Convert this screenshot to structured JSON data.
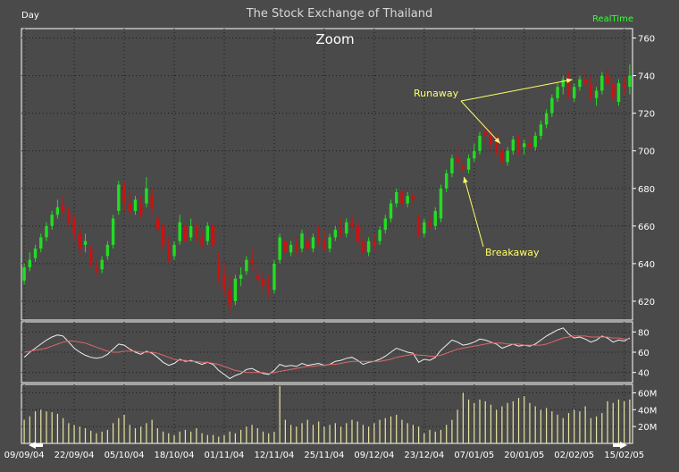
{
  "header": {
    "period_label": "Day",
    "title": "The Stock Exchange of Thailand",
    "realtime_label": "RealTime",
    "zoom_label": "Zoom"
  },
  "colors": {
    "background": "#4a4a4a",
    "grid": "#1a1a1a",
    "up": "#22dd22",
    "down": "#cc1111",
    "volume": "#e8e4a0",
    "rsi_line": "#eeeeee",
    "ma_line": "#dd6666",
    "annotation": "#ffff66",
    "panel_border": "#ffffff"
  },
  "chart_data": [
    {
      "type": "candlestick",
      "title": "The Stock Exchange of Thailand",
      "period": "Day",
      "ylim": [
        610,
        765
      ],
      "y_ticks": [
        620,
        640,
        660,
        680,
        700,
        720,
        740,
        760
      ],
      "x_tick_labels": [
        "09/09/04",
        "22/09/04",
        "05/10/04",
        "18/10/04",
        "01/11/04",
        "12/11/04",
        "25/11/04",
        "09/12/04",
        "23/12/04",
        "07/01/05",
        "20/01/05",
        "02/02/05",
        "15/02/05"
      ],
      "x_tick_index": [
        0,
        9,
        18,
        27,
        36,
        45,
        54,
        63,
        72,
        81,
        90,
        99,
        108
      ],
      "annotations": [
        {
          "text": "Runaway",
          "target_index": [
            86,
            99
          ]
        },
        {
          "text": "Breakaway",
          "target_index": [
            79
          ]
        }
      ],
      "ohlc": [
        [
          631,
          640,
          629,
          638
        ],
        [
          638,
          646,
          636,
          642
        ],
        [
          643,
          650,
          641,
          648
        ],
        [
          648,
          656,
          646,
          654
        ],
        [
          654,
          662,
          652,
          660
        ],
        [
          660,
          668,
          658,
          666
        ],
        [
          666,
          674,
          664,
          670
        ],
        [
          671,
          676,
          666,
          668
        ],
        [
          668,
          670,
          660,
          662
        ],
        [
          664,
          666,
          652,
          656
        ],
        [
          656,
          660,
          644,
          648
        ],
        [
          650,
          656,
          646,
          652
        ],
        [
          648,
          650,
          638,
          640
        ],
        [
          638,
          642,
          634,
          636
        ],
        [
          637,
          644,
          635,
          642
        ],
        [
          644,
          652,
          642,
          650
        ],
        [
          650,
          666,
          648,
          664
        ],
        [
          668,
          684,
          666,
          682
        ],
        [
          682,
          684,
          668,
          672
        ],
        [
          672,
          678,
          666,
          668
        ],
        [
          668,
          676,
          666,
          674
        ],
        [
          672,
          676,
          664,
          666
        ],
        [
          672,
          686,
          670,
          680
        ],
        [
          676,
          680,
          666,
          670
        ],
        [
          664,
          666,
          656,
          658
        ],
        [
          660,
          662,
          646,
          650
        ],
        [
          650,
          654,
          640,
          642
        ],
        [
          644,
          652,
          642,
          650
        ],
        [
          652,
          666,
          650,
          662
        ],
        [
          660,
          662,
          650,
          652
        ],
        [
          654,
          664,
          652,
          660
        ],
        [
          660,
          662,
          652,
          654
        ],
        [
          654,
          658,
          648,
          650
        ],
        [
          652,
          662,
          650,
          660
        ],
        [
          660,
          662,
          648,
          650
        ],
        [
          640,
          646,
          630,
          634
        ],
        [
          634,
          640,
          622,
          626
        ],
        [
          626,
          634,
          614,
          618
        ],
        [
          620,
          634,
          618,
          632
        ],
        [
          632,
          638,
          628,
          634
        ],
        [
          636,
          644,
          634,
          642
        ],
        [
          642,
          648,
          636,
          640
        ],
        [
          634,
          640,
          628,
          632
        ],
        [
          632,
          636,
          624,
          628
        ],
        [
          628,
          634,
          622,
          626
        ],
        [
          626,
          642,
          624,
          640
        ],
        [
          642,
          656,
          640,
          654
        ],
        [
          652,
          654,
          642,
          646
        ],
        [
          646,
          652,
          644,
          650
        ],
        [
          650,
          654,
          644,
          648
        ],
        [
          648,
          658,
          646,
          656
        ],
        [
          652,
          656,
          646,
          648
        ],
        [
          648,
          656,
          646,
          654
        ],
        [
          654,
          660,
          650,
          652
        ],
        [
          652,
          658,
          646,
          648
        ],
        [
          648,
          656,
          646,
          654
        ],
        [
          654,
          660,
          652,
          658
        ],
        [
          658,
          664,
          654,
          656
        ],
        [
          656,
          664,
          654,
          662
        ],
        [
          662,
          666,
          658,
          660
        ],
        [
          660,
          664,
          650,
          652
        ],
        [
          652,
          660,
          642,
          646
        ],
        [
          646,
          654,
          644,
          652
        ],
        [
          652,
          656,
          646,
          650
        ],
        [
          652,
          660,
          650,
          658
        ],
        [
          658,
          666,
          656,
          664
        ],
        [
          664,
          674,
          662,
          672
        ],
        [
          672,
          680,
          670,
          678
        ],
        [
          678,
          680,
          670,
          672
        ],
        [
          672,
          678,
          670,
          676
        ],
        [
          676,
          678,
          670,
          674
        ],
        [
          664,
          666,
          654,
          656
        ],
        [
          656,
          664,
          654,
          662
        ],
        [
          662,
          666,
          658,
          660
        ],
        [
          660,
          670,
          658,
          668
        ],
        [
          664,
          682,
          662,
          680
        ],
        [
          680,
          690,
          678,
          688
        ],
        [
          688,
          698,
          686,
          696
        ],
        [
          696,
          702,
          690,
          694
        ],
        [
          692,
          696,
          688,
          690
        ],
        [
          690,
          698,
          688,
          696
        ],
        [
          696,
          704,
          694,
          700
        ],
        [
          700,
          710,
          698,
          708
        ],
        [
          710,
          714,
          704,
          708
        ],
        [
          708,
          712,
          700,
          704
        ],
        [
          704,
          708,
          698,
          700
        ],
        [
          700,
          702,
          692,
          694
        ],
        [
          694,
          702,
          692,
          700
        ],
        [
          700,
          708,
          698,
          706
        ],
        [
          706,
          708,
          698,
          702
        ],
        [
          702,
          706,
          698,
          704
        ],
        [
          704,
          708,
          700,
          702
        ],
        [
          702,
          710,
          700,
          708
        ],
        [
          708,
          716,
          706,
          714
        ],
        [
          714,
          722,
          712,
          720
        ],
        [
          720,
          730,
          718,
          728
        ],
        [
          728,
          736,
          726,
          734
        ],
        [
          734,
          740,
          730,
          738
        ],
        [
          738,
          742,
          728,
          730
        ],
        [
          728,
          736,
          726,
          734
        ],
        [
          734,
          740,
          732,
          738
        ],
        [
          738,
          744,
          734,
          736
        ],
        [
          736,
          740,
          726,
          728
        ],
        [
          728,
          734,
          724,
          732
        ],
        [
          732,
          742,
          730,
          740
        ],
        [
          740,
          744,
          734,
          736
        ],
        [
          736,
          740,
          726,
          728
        ],
        [
          726,
          738,
          724,
          736
        ],
        [
          736,
          740,
          730,
          734
        ],
        [
          734,
          746,
          730,
          740
        ]
      ]
    },
    {
      "type": "line",
      "ylim": [
        30,
        90
      ],
      "y_ticks": [
        40,
        60,
        80
      ],
      "series": [
        {
          "key": "rsi",
          "values": [
            55,
            60,
            64,
            68,
            72,
            75,
            77,
            76,
            70,
            64,
            60,
            57,
            55,
            54,
            55,
            58,
            63,
            68,
            67,
            63,
            60,
            58,
            61,
            59,
            55,
            50,
            47,
            49,
            53,
            51,
            52,
            50,
            48,
            50,
            48,
            42,
            38,
            34,
            37,
            39,
            43,
            44,
            41,
            39,
            38,
            42,
            48,
            46,
            47,
            46,
            49,
            47,
            48,
            49,
            47,
            48,
            51,
            52,
            54,
            55,
            52,
            48,
            50,
            51,
            53,
            56,
            60,
            64,
            62,
            60,
            59,
            50,
            53,
            52,
            55,
            62,
            67,
            72,
            70,
            67,
            68,
            70,
            73,
            72,
            70,
            68,
            64,
            66,
            68,
            66,
            67,
            66,
            68,
            72,
            76,
            79,
            82,
            84,
            78,
            74,
            75,
            73,
            70,
            72,
            76,
            74,
            70,
            72,
            71,
            74
          ]
        },
        {
          "key": "ma",
          "values": [
            60,
            61,
            62,
            63,
            64,
            66,
            68,
            70,
            71,
            71,
            70,
            69,
            67,
            65,
            63,
            61,
            60,
            60,
            61,
            61,
            61,
            60,
            60,
            60,
            59,
            57,
            55,
            53,
            52,
            52,
            51,
            51,
            50,
            50,
            49,
            48,
            46,
            44,
            42,
            41,
            40,
            40,
            40,
            40,
            39,
            40,
            41,
            42,
            43,
            44,
            45,
            46,
            46,
            47,
            47,
            48,
            48,
            49,
            50,
            51,
            51,
            51,
            51,
            51,
            51,
            52,
            53,
            55,
            56,
            57,
            58,
            57,
            57,
            56,
            56,
            57,
            59,
            61,
            63,
            64,
            65,
            66,
            67,
            68,
            69,
            69,
            69,
            68,
            68,
            68,
            67,
            67,
            67,
            67,
            68,
            70,
            72,
            74,
            75,
            76,
            76,
            76,
            75,
            75,
            75,
            75,
            74,
            74,
            73,
            73
          ]
        }
      ]
    },
    {
      "type": "bar",
      "ylim": [
        0,
        70
      ],
      "y_ticks": [
        20,
        40,
        60
      ],
      "y_tick_labels": [
        "20M",
        "40M",
        "60M"
      ],
      "values": [
        28,
        32,
        38,
        40,
        38,
        37,
        35,
        30,
        24,
        22,
        20,
        18,
        15,
        12,
        14,
        16,
        24,
        30,
        34,
        22,
        18,
        20,
        24,
        28,
        18,
        14,
        12,
        10,
        14,
        16,
        14,
        18,
        12,
        10,
        10,
        8,
        10,
        14,
        12,
        16,
        20,
        22,
        18,
        14,
        12,
        14,
        68,
        28,
        22,
        20,
        24,
        28,
        22,
        26,
        20,
        22,
        24,
        20,
        24,
        28,
        26,
        22,
        20,
        24,
        28,
        30,
        32,
        34,
        28,
        24,
        22,
        20,
        12,
        16,
        14,
        16,
        22,
        28,
        40,
        60,
        52,
        48,
        52,
        50,
        46,
        40,
        44,
        48,
        50,
        54,
        56,
        48,
        44,
        40,
        42,
        38,
        34,
        30,
        36,
        40,
        38,
        44,
        30,
        32,
        36,
        50,
        48,
        52,
        50,
        52
      ]
    }
  ]
}
